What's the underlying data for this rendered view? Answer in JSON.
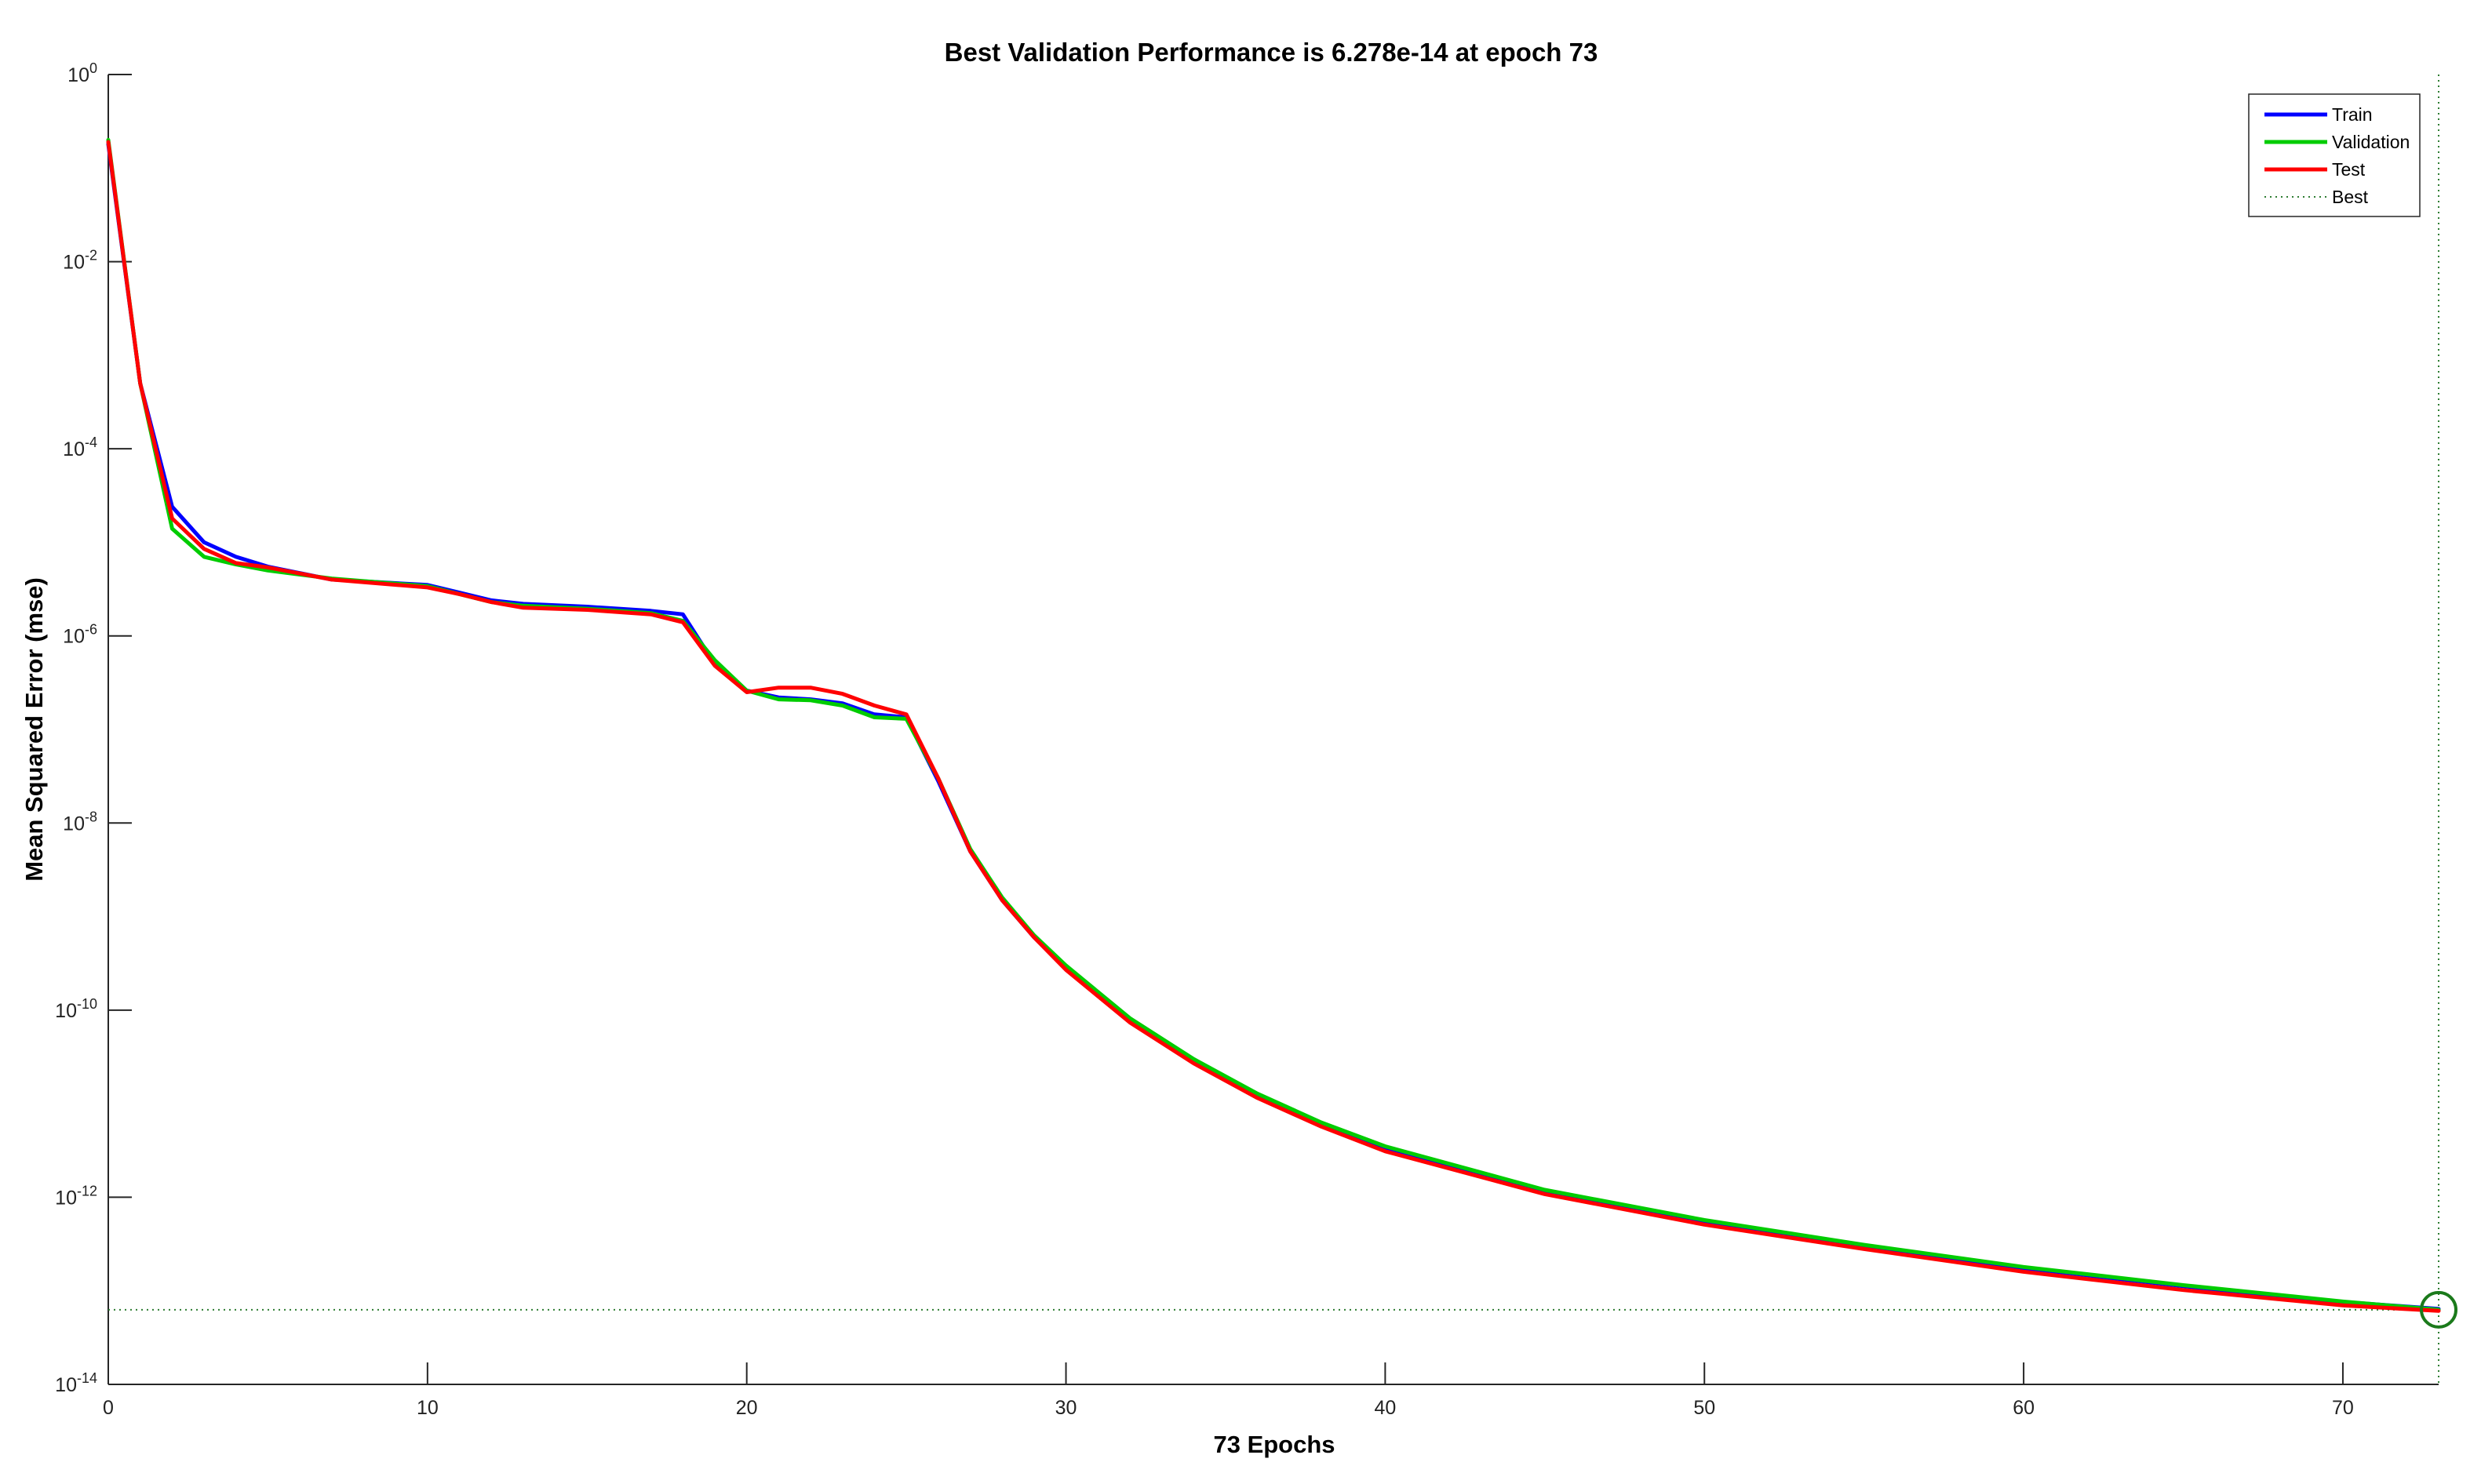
{
  "chart_data": {
    "type": "line",
    "title": "Best Validation Performance is 6.278e-14 at epoch 73",
    "xlabel": "73 Epochs",
    "ylabel": "Mean Squared Error  (mse)",
    "xlim": [
      0,
      73
    ],
    "ylim": [
      1e-14,
      1
    ],
    "y_scale": "log",
    "x_ticks": [
      0,
      10,
      20,
      30,
      40,
      50,
      60,
      70
    ],
    "y_ticks": [
      {
        "base": "10",
        "exp": "0",
        "value": 1
      },
      {
        "base": "10",
        "exp": "-2",
        "value": 0.01
      },
      {
        "base": "10",
        "exp": "-4",
        "value": 0.0001
      },
      {
        "base": "10",
        "exp": "-6",
        "value": 1e-06
      },
      {
        "base": "10",
        "exp": "-8",
        "value": 1e-08
      },
      {
        "base": "10",
        "exp": "-10",
        "value": 1e-10
      },
      {
        "base": "10",
        "exp": "-12",
        "value": 1e-12
      },
      {
        "base": "10",
        "exp": "-14",
        "value": 1e-14
      }
    ],
    "grid": false,
    "legend_position": "top-right",
    "legend": [
      "Train",
      "Validation",
      "Test",
      "Best"
    ],
    "best": {
      "epoch": 73,
      "value": 6.278e-14,
      "line_color": "#2e7d32",
      "marker_color": "#1b7a1b"
    },
    "series": [
      {
        "name": "Train",
        "color": "#0000ff",
        "points": [
          [
            0,
            0.18
          ],
          [
            1,
            0.0005
          ],
          [
            2,
            2.4e-05
          ],
          [
            3,
            1e-05
          ],
          [
            4,
            7e-06
          ],
          [
            5,
            5.5e-06
          ],
          [
            7,
            4e-06
          ],
          [
            10,
            3.5e-06
          ],
          [
            11,
            2.9e-06
          ],
          [
            12,
            2.4e-06
          ],
          [
            13,
            2.2e-06
          ],
          [
            15,
            2.05e-06
          ],
          [
            17,
            1.85e-06
          ],
          [
            18,
            1.7e-06
          ],
          [
            19,
            5e-07
          ],
          [
            20,
            2.6e-07
          ],
          [
            21,
            2.2e-07
          ],
          [
            22,
            2.1e-07
          ],
          [
            23,
            1.9e-07
          ],
          [
            24,
            1.45e-07
          ],
          [
            25,
            1.35e-07
          ],
          [
            26,
            2.8e-08
          ],
          [
            27,
            5e-09
          ],
          [
            28,
            1.5e-09
          ],
          [
            29,
            6e-10
          ],
          [
            30,
            2.8e-10
          ],
          [
            32,
            7.8e-11
          ],
          [
            34,
            2.8e-11
          ],
          [
            36,
            1.2e-11
          ],
          [
            38,
            6e-12
          ],
          [
            40,
            3.3e-12
          ],
          [
            45,
            1.15e-12
          ],
          [
            50,
            5.5e-13
          ],
          [
            55,
            3e-13
          ],
          [
            60,
            1.75e-13
          ],
          [
            65,
            1.12e-13
          ],
          [
            70,
            7.6e-14
          ],
          [
            73,
            6.4e-14
          ]
        ]
      },
      {
        "name": "Validation",
        "color": "#00cc00",
        "points": [
          [
            0,
            0.2
          ],
          [
            1,
            0.0005
          ],
          [
            2,
            1.4e-05
          ],
          [
            3,
            7e-06
          ],
          [
            4,
            5.8e-06
          ],
          [
            5,
            5e-06
          ],
          [
            7,
            4.1e-06
          ],
          [
            10,
            3.4e-06
          ],
          [
            11,
            2.8e-06
          ],
          [
            12,
            2.3e-06
          ],
          [
            13,
            2.1e-06
          ],
          [
            15,
            1.95e-06
          ],
          [
            17,
            1.75e-06
          ],
          [
            18,
            1.45e-06
          ],
          [
            19,
            5.5e-07
          ],
          [
            20,
            2.6e-07
          ],
          [
            21,
            2.1e-07
          ],
          [
            22,
            2.05e-07
          ],
          [
            23,
            1.8e-07
          ],
          [
            24,
            1.35e-07
          ],
          [
            25,
            1.3e-07
          ],
          [
            26,
            3e-08
          ],
          [
            27,
            5.3e-09
          ],
          [
            28,
            1.6e-09
          ],
          [
            29,
            6.3e-10
          ],
          [
            30,
            3e-10
          ],
          [
            32,
            8.2e-11
          ],
          [
            34,
            3e-11
          ],
          [
            36,
            1.28e-11
          ],
          [
            38,
            6.3e-12
          ],
          [
            40,
            3.5e-12
          ],
          [
            45,
            1.2e-12
          ],
          [
            50,
            5.7e-13
          ],
          [
            55,
            3.1e-13
          ],
          [
            60,
            1.8e-13
          ],
          [
            65,
            1.15e-13
          ],
          [
            70,
            7.7e-14
          ],
          [
            73,
            6.278e-14
          ]
        ]
      },
      {
        "name": "Test",
        "color": "#ff0000",
        "points": [
          [
            0,
            0.19
          ],
          [
            1,
            0.0005
          ],
          [
            2,
            1.8e-05
          ],
          [
            3,
            8.5e-06
          ],
          [
            4,
            6e-06
          ],
          [
            5,
            5.4e-06
          ],
          [
            7,
            4e-06
          ],
          [
            10,
            3.3e-06
          ],
          [
            11,
            2.8e-06
          ],
          [
            12,
            2.3e-06
          ],
          [
            13,
            2e-06
          ],
          [
            15,
            1.9e-06
          ],
          [
            17,
            1.7e-06
          ],
          [
            18,
            1.4e-06
          ],
          [
            19,
            4.8e-07
          ],
          [
            20,
            2.5e-07
          ],
          [
            21,
            2.8e-07
          ],
          [
            22,
            2.8e-07
          ],
          [
            23,
            2.4e-07
          ],
          [
            24,
            1.8e-07
          ],
          [
            25,
            1.45e-07
          ],
          [
            26,
            3e-08
          ],
          [
            27,
            5e-09
          ],
          [
            28,
            1.5e-09
          ],
          [
            29,
            6e-10
          ],
          [
            30,
            2.7e-10
          ],
          [
            32,
            7.4e-11
          ],
          [
            34,
            2.7e-11
          ],
          [
            36,
            1.15e-11
          ],
          [
            38,
            5.7e-12
          ],
          [
            40,
            3.1e-12
          ],
          [
            45,
            1.08e-12
          ],
          [
            50,
            5.1e-13
          ],
          [
            55,
            2.8e-13
          ],
          [
            60,
            1.6e-13
          ],
          [
            65,
            1.02e-13
          ],
          [
            70,
            7e-14
          ],
          [
            73,
            6.1e-14
          ]
        ]
      }
    ]
  }
}
